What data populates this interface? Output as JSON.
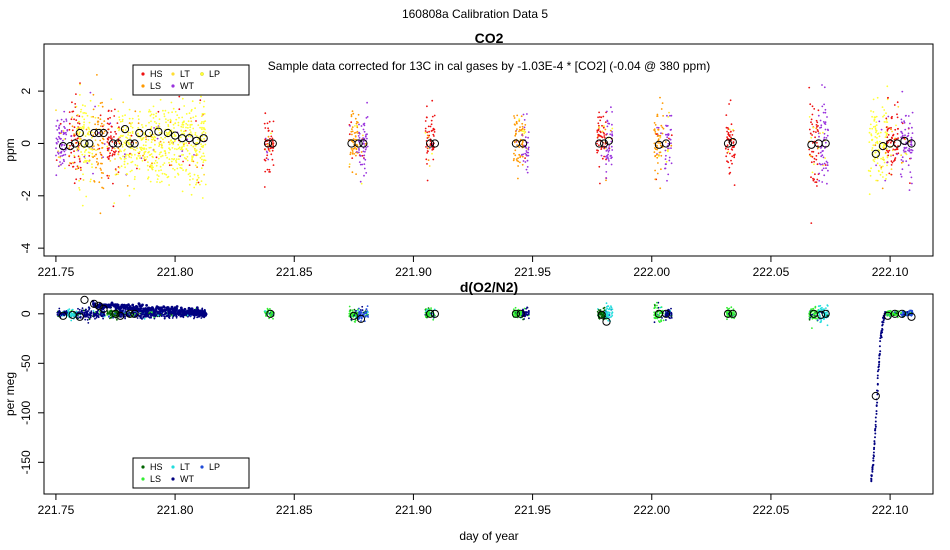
{
  "page": {
    "title": "160808a   Calibration Data 5"
  },
  "legend_names": {
    "HS": "HS",
    "LS": "LS",
    "LT": "LT",
    "WT": "WT",
    "LP": "LP"
  },
  "chart_data": [
    {
      "type": "scatter",
      "title": "CO2",
      "annotation": "Sample data corrected for 13C in cal gases by -1.03E-4 * [CO2] (-0.04 @ 380 ppm)",
      "xlabel": "",
      "ylabel": "ppm",
      "xlim": [
        221.745,
        222.118
      ],
      "ylim": [
        -4.3,
        3.8
      ],
      "x_ticks": [
        221.75,
        221.8,
        221.85,
        221.9,
        221.95,
        222.0,
        222.05,
        222.1
      ],
      "x_tick_labels": [
        "221.75",
        "221.80",
        "221.85",
        "221.90",
        "221.95",
        "222.00",
        "222.05",
        "222.10"
      ],
      "y_ticks": [
        -4,
        -2,
        0,
        2
      ],
      "y_tick_labels": [
        "-4",
        "-2",
        "0",
        "2"
      ],
      "legend_position": "top-left",
      "colors": {
        "HS": "#ee1111",
        "LS": "#ff9900",
        "LT": "#ffdd33",
        "WT": "#9933dd",
        "LP": "#ffff33"
      },
      "series_names": [
        "HS",
        "LS",
        "LT",
        "WT",
        "LP"
      ],
      "clusters": [
        {
          "x": 221.7525,
          "w": 0.005,
          "sd": 0.6,
          "series": "WT"
        },
        {
          "x": 221.758,
          "w": 0.005,
          "sd": 0.8,
          "series": "HS"
        },
        {
          "x": 221.762,
          "w": 0.007,
          "sd": 0.7,
          "series": "LP"
        },
        {
          "x": 221.768,
          "w": 0.005,
          "sd": 0.8,
          "series": "LS"
        },
        {
          "x": 221.774,
          "w": 0.005,
          "sd": 0.8,
          "series": "HS"
        },
        {
          "x": 221.779,
          "w": 0.006,
          "sd": 0.7,
          "series": "LP"
        },
        {
          "x": 221.7975,
          "w": 0.031,
          "sd": 0.75,
          "series": "LP"
        },
        {
          "x": 221.8395,
          "w": 0.004,
          "sd": 0.5,
          "series": "HS"
        },
        {
          "x": 221.875,
          "w": 0.004,
          "sd": 0.55,
          "series": "LS"
        },
        {
          "x": 221.879,
          "w": 0.004,
          "sd": 0.6,
          "series": "WT"
        },
        {
          "x": 221.907,
          "w": 0.004,
          "sd": 0.55,
          "series": "HS"
        },
        {
          "x": 221.944,
          "w": 0.004,
          "sd": 0.55,
          "series": "LS"
        },
        {
          "x": 221.947,
          "w": 0.003,
          "sd": 0.6,
          "series": "WT"
        },
        {
          "x": 221.979,
          "w": 0.004,
          "sd": 0.6,
          "series": "HS"
        },
        {
          "x": 221.982,
          "w": 0.003,
          "sd": 0.6,
          "series": "WT"
        },
        {
          "x": 222.003,
          "w": 0.004,
          "sd": 0.7,
          "series": "LS"
        },
        {
          "x": 222.007,
          "w": 0.003,
          "sd": 0.6,
          "series": "WT"
        },
        {
          "x": 222.033,
          "w": 0.004,
          "sd": 0.6,
          "series": "HS"
        },
        {
          "x": 222.068,
          "w": 0.004,
          "sd": 0.9,
          "series": "HS"
        },
        {
          "x": 222.072,
          "w": 0.004,
          "sd": 0.9,
          "series": "WT"
        },
        {
          "x": 222.095,
          "w": 0.008,
          "sd": 0.8,
          "series": "LP"
        },
        {
          "x": 222.101,
          "w": 0.005,
          "sd": 0.6,
          "series": "HS"
        },
        {
          "x": 222.107,
          "w": 0.005,
          "sd": 0.6,
          "series": "WT"
        }
      ],
      "means": {
        "x": [
          221.753,
          221.756,
          221.758,
          221.76,
          221.762,
          221.764,
          221.766,
          221.768,
          221.77,
          221.774,
          221.776,
          221.779,
          221.781,
          221.783,
          221.785,
          221.789,
          221.793,
          221.797,
          221.8,
          221.803,
          221.806,
          221.809,
          221.812,
          221.839,
          221.841,
          221.874,
          221.877,
          221.879,
          221.907,
          221.909,
          221.943,
          221.946,
          221.978,
          221.98,
          221.982,
          222.003,
          222.006,
          222.032,
          222.034,
          222.067,
          222.07,
          222.073,
          222.094,
          222.097,
          222.1,
          222.103,
          222.106,
          222.109
        ],
        "y": [
          -0.1,
          -0.1,
          0.0,
          0.4,
          0.0,
          0.0,
          0.4,
          0.4,
          0.4,
          0.0,
          0.0,
          0.55,
          0.0,
          0.0,
          0.4,
          0.4,
          0.45,
          0.4,
          0.3,
          0.2,
          0.2,
          0.1,
          0.2,
          0.0,
          0.0,
          0.0,
          0.0,
          0.0,
          0.0,
          0.0,
          0.0,
          0.0,
          0.0,
          0.0,
          0.1,
          -0.05,
          0.0,
          0.0,
          0.05,
          -0.05,
          0.0,
          0.0,
          -0.4,
          -0.1,
          0.0,
          0.0,
          0.1,
          0.0
        ]
      }
    },
    {
      "type": "scatter",
      "title": "d(O2/N2)",
      "xlabel": "day of year",
      "ylabel": "per meg",
      "xlim": [
        221.745,
        222.118
      ],
      "ylim": [
        -182,
        20
      ],
      "x_ticks": [
        221.75,
        221.8,
        221.85,
        221.9,
        221.95,
        222.0,
        222.05,
        222.1
      ],
      "x_tick_labels": [
        "221.75",
        "221.80",
        "221.85",
        "221.90",
        "221.95",
        "222.00",
        "222.05",
        "222.10"
      ],
      "y_ticks": [
        -150,
        -100,
        -50,
        0
      ],
      "y_tick_labels": [
        "-150",
        "-100",
        "-50",
        "0"
      ],
      "legend_position": "bottom-left",
      "colors": {
        "HS": "#006400",
        "LS": "#33ee33",
        "LT": "#22dddd",
        "WT": "#000080",
        "LP": "#1f4bd8"
      },
      "series_names": [
        "HS",
        "LS",
        "LT",
        "WT",
        "LP"
      ],
      "clusters": [
        {
          "x": 221.753,
          "w": 0.005,
          "sd": 1.5,
          "series": "WT"
        },
        {
          "x": 221.757,
          "w": 0.004,
          "sd": 2.0,
          "series": "LT"
        },
        {
          "x": 221.762,
          "w": 0.006,
          "sd": 3.0,
          "series": "WT"
        },
        {
          "x": 221.768,
          "w": 0.005,
          "sd": 2.0,
          "series": "WT"
        },
        {
          "x": 221.774,
          "w": 0.005,
          "sd": 2.0,
          "series": "HS"
        },
        {
          "x": 221.779,
          "w": 0.005,
          "sd": 2.0,
          "series": "WT"
        },
        {
          "x": 221.7975,
          "w": 0.031,
          "sd": 2.0,
          "series": "WT"
        },
        {
          "x": 221.8395,
          "w": 0.004,
          "sd": 2.0,
          "series": "LS"
        },
        {
          "x": 221.875,
          "w": 0.004,
          "sd": 3.0,
          "series": "LS"
        },
        {
          "x": 221.879,
          "w": 0.004,
          "sd": 3.5,
          "series": "LP"
        },
        {
          "x": 221.907,
          "w": 0.004,
          "sd": 2.5,
          "series": "LS"
        },
        {
          "x": 221.944,
          "w": 0.004,
          "sd": 2.5,
          "series": "LS"
        },
        {
          "x": 221.947,
          "w": 0.003,
          "sd": 2.5,
          "series": "WT"
        },
        {
          "x": 221.979,
          "w": 0.004,
          "sd": 2.5,
          "series": "HS"
        },
        {
          "x": 221.982,
          "w": 0.003,
          "sd": 4.0,
          "series": "LT"
        },
        {
          "x": 222.003,
          "w": 0.004,
          "sd": 5.0,
          "series": "LS"
        },
        {
          "x": 222.007,
          "w": 0.003,
          "sd": 2.5,
          "series": "WT"
        },
        {
          "x": 222.033,
          "w": 0.004,
          "sd": 2.5,
          "series": "LS"
        },
        {
          "x": 222.068,
          "w": 0.004,
          "sd": 3.0,
          "series": "LS"
        },
        {
          "x": 222.072,
          "w": 0.004,
          "sd": 4.0,
          "series": "LT"
        },
        {
          "x": 222.101,
          "w": 0.005,
          "sd": 1.5,
          "series": "LS"
        },
        {
          "x": 222.107,
          "w": 0.005,
          "sd": 1.5,
          "series": "LP"
        }
      ],
      "trend_line": {
        "series": "WT",
        "x": [
          221.7655,
          221.813
        ],
        "y": [
          9,
          1
        ]
      },
      "dip": {
        "series": "WT",
        "x": [
          222.092,
          222.093,
          222.094,
          222.095,
          222.096,
          222.097,
          222.098
        ],
        "y": [
          -170,
          -150,
          -110,
          -60,
          -25,
          -8,
          0
        ]
      },
      "means": {
        "x": [
          221.753,
          221.757,
          221.76,
          221.762,
          221.766,
          221.768,
          221.77,
          221.775,
          221.777,
          221.781,
          221.783,
          221.84,
          221.875,
          221.878,
          221.907,
          221.909,
          221.943,
          221.945,
          221.979,
          221.981,
          222.003,
          222.006,
          222.032,
          222.034,
          222.068,
          222.071,
          222.073,
          222.094,
          222.099,
          222.102,
          222.105,
          222.109
        ],
        "y": [
          -2,
          -1,
          -3,
          14,
          10,
          8,
          5,
          0,
          -2,
          0,
          0,
          0,
          -2,
          -5,
          0,
          0,
          0,
          0,
          -1,
          -8,
          0,
          0,
          0,
          0,
          0,
          -1,
          0,
          -83,
          -2,
          0,
          0,
          -3
        ]
      }
    }
  ]
}
